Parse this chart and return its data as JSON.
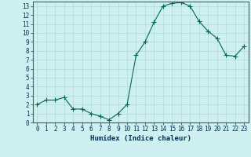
{
  "title": "",
  "xlabel": "Humidex (Indice chaleur)",
  "x": [
    0,
    1,
    2,
    3,
    4,
    5,
    6,
    7,
    8,
    9,
    10,
    11,
    12,
    13,
    14,
    15,
    16,
    17,
    18,
    19,
    20,
    21,
    22,
    23
  ],
  "y": [
    2.0,
    2.5,
    2.5,
    2.8,
    1.5,
    1.5,
    1.0,
    0.7,
    0.3,
    1.0,
    2.0,
    7.5,
    9.0,
    11.2,
    13.0,
    13.3,
    13.4,
    13.0,
    11.3,
    10.2,
    9.4,
    7.5,
    7.4,
    8.5
  ],
  "line_color": "#006858",
  "marker": "+",
  "marker_size": 4,
  "bg_color": "#cff0f0",
  "grid_color": "#b0dada",
  "xlim": [
    -0.5,
    23.5
  ],
  "ylim": [
    0,
    13.5
  ],
  "xticks": [
    0,
    1,
    2,
    3,
    4,
    5,
    6,
    7,
    8,
    9,
    10,
    11,
    12,
    13,
    14,
    15,
    16,
    17,
    18,
    19,
    20,
    21,
    22,
    23
  ],
  "yticks": [
    0,
    1,
    2,
    3,
    4,
    5,
    6,
    7,
    8,
    9,
    10,
    11,
    12,
    13
  ],
  "tick_fontsize": 5.5,
  "xlabel_fontsize": 6.5,
  "label_color": "#003050"
}
